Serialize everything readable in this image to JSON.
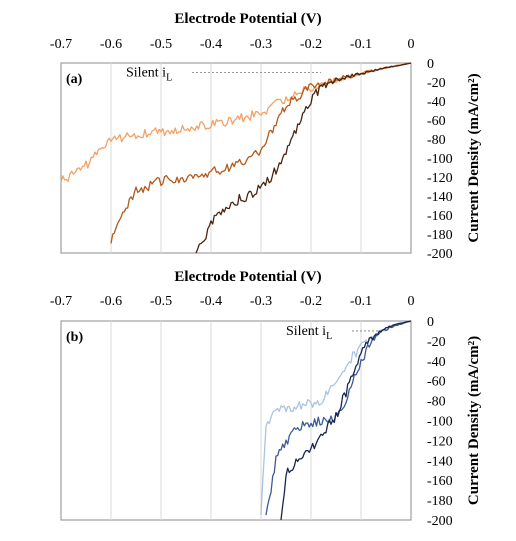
{
  "chart_data": [
    {
      "type": "line",
      "panel_label": "(a)",
      "xlabel": "Electrode Potential (V)",
      "ylabel": "Current Density (mA/cm²)",
      "xlim": [
        -0.7,
        0
      ],
      "ylim": [
        -200,
        0
      ],
      "x_axis_position": "top",
      "y_axis_position": "right",
      "x_ticks": [
        "-0.7",
        "-0.6",
        "-0.5",
        "-0.4",
        "-0.3",
        "-0.2",
        "-0.1",
        "0"
      ],
      "y_ticks": [
        "0",
        "-20",
        "-40",
        "-60",
        "-80",
        "-100",
        "-120",
        "-140",
        "-160",
        "-180",
        "-200"
      ],
      "grid": true,
      "annotation": {
        "text": "Silent i",
        "subscript": "L",
        "y": -10,
        "x_from": -0.57,
        "x_to": -0.18
      },
      "series": [
        {
          "color": "#f4a064",
          "x": [
            0,
            -0.05,
            -0.1,
            -0.15,
            -0.2,
            -0.25,
            -0.3,
            -0.35,
            -0.4,
            -0.45,
            -0.5,
            -0.55,
            -0.6,
            -0.65,
            -0.7
          ],
          "y": [
            0,
            -5,
            -11,
            -18,
            -26,
            -38,
            -52,
            -60,
            -64,
            -68,
            -72,
            -75,
            -82,
            -108,
            -125
          ]
        },
        {
          "color": "#b35a1a",
          "x": [
            0,
            -0.05,
            -0.1,
            -0.15,
            -0.2,
            -0.25,
            -0.28,
            -0.3,
            -0.35,
            -0.4,
            -0.45,
            -0.5,
            -0.55,
            -0.58,
            -0.6
          ],
          "y": [
            0,
            -5,
            -11,
            -17,
            -25,
            -45,
            -73,
            -92,
            -108,
            -115,
            -120,
            -124,
            -135,
            -158,
            -190
          ]
        },
        {
          "color": "#4a2410",
          "x": [
            0,
            -0.05,
            -0.1,
            -0.15,
            -0.18,
            -0.2,
            -0.22,
            -0.25,
            -0.28,
            -0.32,
            -0.35,
            -0.38,
            -0.4,
            -0.43
          ],
          "y": [
            0,
            -5,
            -11,
            -17,
            -25,
            -40,
            -60,
            -92,
            -122,
            -138,
            -145,
            -155,
            -170,
            -200
          ]
        }
      ]
    },
    {
      "type": "line",
      "panel_label": "(b)",
      "xlabel": "Electrode Potential (V)",
      "ylabel": "Current Density (mA/cm²)",
      "xlim": [
        -0.7,
        0
      ],
      "ylim": [
        -200,
        0
      ],
      "x_axis_position": "top",
      "y_axis_position": "right",
      "x_ticks": [
        "-0.7",
        "-0.6",
        "-0.5",
        "-0.4",
        "-0.3",
        "-0.2",
        "-0.1",
        "0"
      ],
      "y_ticks": [
        "0",
        "-20",
        "-40",
        "-60",
        "-80",
        "-100",
        "-120",
        "-140",
        "-160",
        "-180",
        "-200"
      ],
      "grid": true,
      "annotation": {
        "text": "Silent i",
        "subscript": "L",
        "y": -10,
        "x_from": -0.25,
        "x_to": -0.06
      },
      "series": [
        {
          "color": "#aac4e0",
          "x": [
            0,
            -0.02,
            -0.04,
            -0.06,
            -0.08,
            -0.1,
            -0.13,
            -0.16,
            -0.18,
            -0.2,
            -0.22,
            -0.25,
            -0.27,
            -0.29,
            -0.3
          ],
          "y": [
            0,
            -3,
            -6,
            -11,
            -18,
            -25,
            -45,
            -65,
            -80,
            -83,
            -85,
            -88,
            -90,
            -108,
            -195
          ]
        },
        {
          "color": "#3a5a98",
          "x": [
            0,
            -0.02,
            -0.04,
            -0.06,
            -0.08,
            -0.1,
            -0.13,
            -0.16,
            -0.2,
            -0.23,
            -0.25,
            -0.27,
            -0.29
          ],
          "y": [
            0,
            -3,
            -6,
            -11,
            -20,
            -40,
            -80,
            -100,
            -102,
            -108,
            -122,
            -140,
            -195
          ]
        },
        {
          "color": "#1a2550",
          "x": [
            0,
            -0.02,
            -0.04,
            -0.06,
            -0.08,
            -0.1,
            -0.12,
            -0.15,
            -0.18,
            -0.2,
            -0.23,
            -0.25,
            -0.26
          ],
          "y": [
            0,
            -2,
            -5,
            -10,
            -18,
            -30,
            -60,
            -95,
            -115,
            -128,
            -140,
            -155,
            -200
          ]
        }
      ]
    }
  ]
}
